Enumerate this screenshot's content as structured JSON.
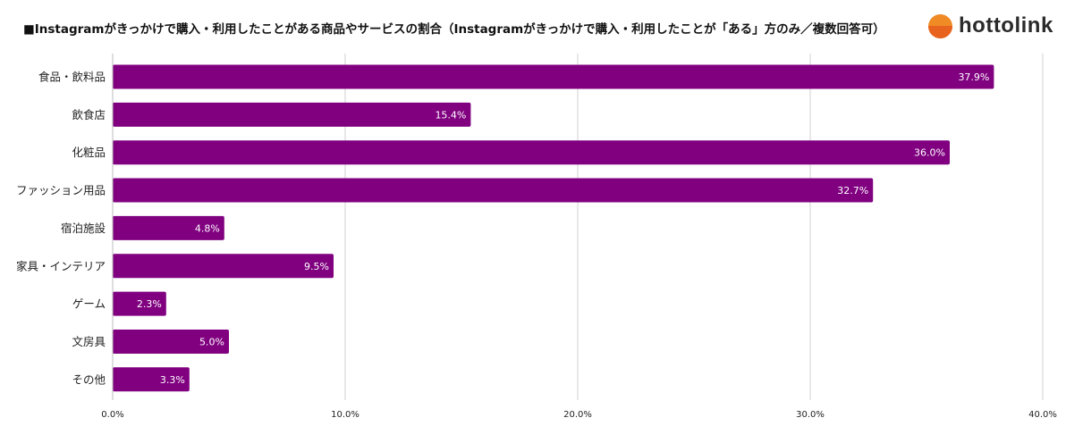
{
  "title": "■Instagramがきっかけで購入・利用したことがある商品やサービスの割合（Instagramがきっかけで購入・利用したことが「ある」方のみ／複数回答可）",
  "logo": {
    "text": "hottolink",
    "icon": "orange-circle-logo"
  },
  "colors": {
    "bar": "#800080",
    "grid": "#d0d0d0",
    "label": "#ffffff",
    "text": "#222222"
  },
  "chart_data": {
    "type": "bar",
    "orientation": "horizontal",
    "title": "■Instagramがきっかけで購入・利用したことがある商品やサービスの割合（Instagramがきっかけで購入・利用したことが「ある」方のみ／複数回答可）",
    "categories": [
      "食品・飲料品",
      "飲食店",
      "化粧品",
      "ファッション用品",
      "宿泊施設",
      "家具・インテリア",
      "ゲーム",
      "文房具",
      "その他"
    ],
    "values": [
      37.9,
      15.4,
      36.0,
      32.7,
      4.8,
      9.5,
      2.3,
      5.0,
      3.3
    ],
    "value_labels": [
      "37.9%",
      "15.4%",
      "36.0%",
      "32.7%",
      "4.8%",
      "9.5%",
      "2.3%",
      "5.0%",
      "3.3%"
    ],
    "xlim": [
      0,
      40
    ],
    "xticks": [
      0,
      10,
      20,
      30,
      40
    ],
    "xtick_labels": [
      "0.0%",
      "10.0%",
      "20.0%",
      "30.0%",
      "40.0%"
    ],
    "xlabel": "",
    "ylabel": "",
    "grid": true,
    "legend": "none"
  }
}
